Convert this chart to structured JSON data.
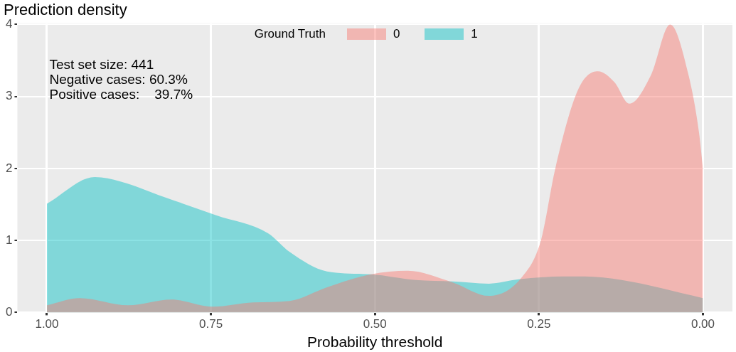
{
  "chart_data": {
    "type": "area",
    "title": "Prediction density",
    "xlabel": "Probability threshold",
    "legend_title": "Ground Truth",
    "legend": "top",
    "grid": true,
    "annotations": [
      "Test set size: 441",
      "Negative cases: 60.3%",
      "Positive cases:    39.7%"
    ],
    "xlim": [
      1.045,
      -0.045
    ],
    "xticks": [
      {
        "value": 1,
        "label": "1.00"
      },
      {
        "value": 0.75,
        "label": "0.75"
      },
      {
        "value": 0.5,
        "label": "0.50"
      },
      {
        "value": 0.25,
        "label": "0.25"
      },
      {
        "value": 0,
        "label": "0.00"
      }
    ],
    "ylim": [
      0,
      4.02
    ],
    "yticks": [
      0,
      1,
      2,
      3,
      4
    ],
    "series": [
      {
        "name": "0",
        "color": "#f8766d",
        "x": [
          1,
          0.95,
          0.876,
          0.81,
          0.747,
          0.685,
          0.63,
          0.573,
          0.506,
          0.45,
          0.382,
          0.326,
          0.275,
          0.247,
          0.225,
          0.19,
          0.16,
          0.135,
          0.112,
          0.079,
          0.05,
          0.022,
          0.006,
          0
        ],
        "values": [
          0.1,
          0.2,
          0.1,
          0.18,
          0.08,
          0.14,
          0.16,
          0.35,
          0.53,
          0.58,
          0.42,
          0.23,
          0.5,
          1.0,
          2.0,
          3.1,
          3.35,
          3.2,
          2.9,
          3.3,
          4.0,
          3.3,
          2.5,
          2.0
        ]
      },
      {
        "name": "1",
        "color": "#00bfc4",
        "x": [
          1,
          0.927,
          0.888,
          0.82,
          0.742,
          0.663,
          0.63,
          0.573,
          0.506,
          0.438,
          0.382,
          0.326,
          0.281,
          0.213,
          0.18,
          0.124,
          0
        ],
        "values": [
          1.51,
          1.88,
          1.82,
          1.6,
          1.35,
          1.1,
          0.84,
          0.57,
          0.53,
          0.45,
          0.43,
          0.4,
          0.46,
          0.5,
          0.5,
          0.45,
          0.2
        ]
      }
    ]
  }
}
